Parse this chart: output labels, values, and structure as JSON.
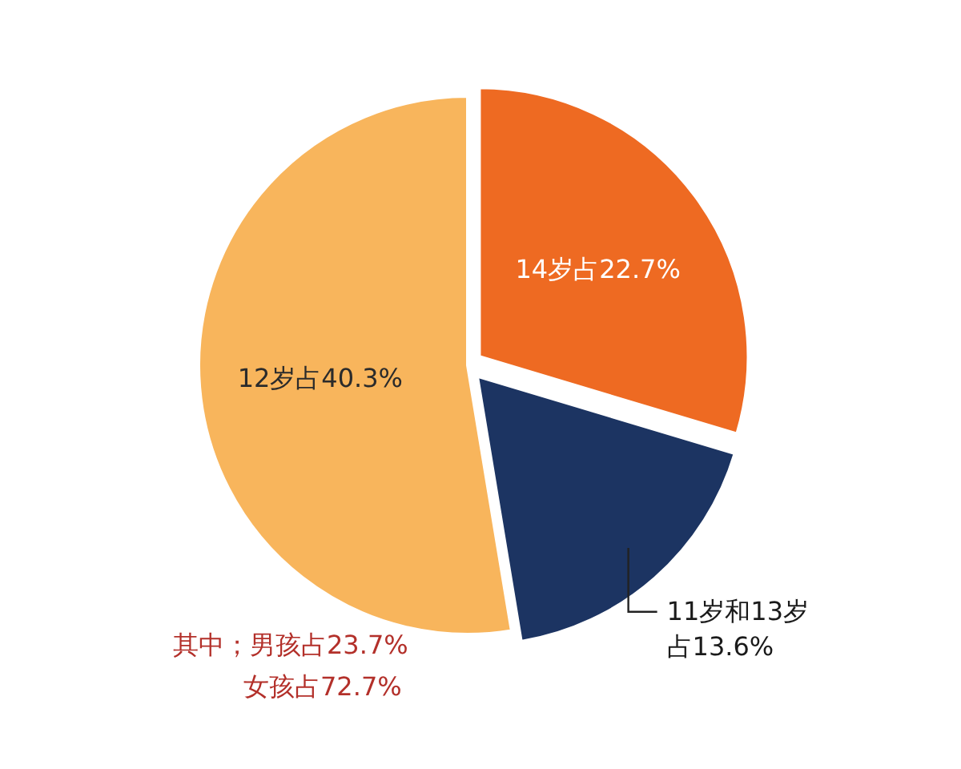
{
  "chart_data": {
    "type": "pie",
    "categories": [
      "14岁",
      "11岁和13岁",
      "12岁"
    ],
    "values": [
      22.7,
      13.6,
      40.3
    ],
    "value_labels": [
      "占22.7%",
      "占13.6%",
      "占40.3%"
    ],
    "colors": [
      "#ee6a22",
      "#1c3462",
      "#f8b55c"
    ],
    "annotations": [
      "其中；男孩占23.7%",
      "女孩占72.7%"
    ]
  }
}
